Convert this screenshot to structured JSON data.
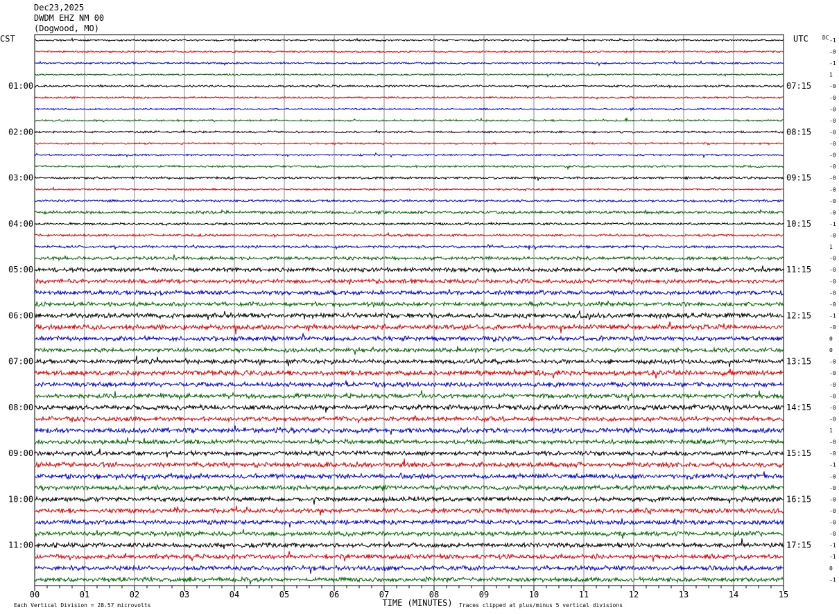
{
  "header": {
    "date": "Dec23,2025",
    "station": "DWDM EHZ NM 00",
    "location": "(Dogwood, MO)"
  },
  "footer": {
    "scale_note": "Each Vertical Division =   28.57 microvolts",
    "clip_note": "Traces clipped at plus/minus 5 vertical divisions"
  },
  "chart_data": {
    "type": "line",
    "title": "",
    "xlabel": "TIME (MINUTES)",
    "x_ticks": [
      "00",
      "01",
      "02",
      "03",
      "04",
      "05",
      "06",
      "07",
      "08",
      "09",
      "10",
      "11",
      "12",
      "13",
      "14",
      "15"
    ],
    "xlim": [
      0,
      15
    ],
    "left_axis_label": "CST",
    "right_axis_label": "UTC",
    "dc_label": "DC",
    "left_hour_labels": [
      "01:00",
      "02:00",
      "03:00",
      "04:00",
      "05:00",
      "06:00",
      "07:00",
      "08:00",
      "09:00",
      "10:00",
      "11:00"
    ],
    "right_hour_labels": [
      "07:15",
      "08:15",
      "09:15",
      "10:15",
      "11:15",
      "12:15",
      "13:15",
      "14:15",
      "15:15",
      "16:15",
      "17:15"
    ],
    "trace_count": 48,
    "trace_colors": [
      "#000000",
      "#e00000",
      "#0000d0",
      "#006400"
    ],
    "dc_offsets": [
      "-1",
      "-0",
      "-1",
      "1",
      "-0",
      "-0",
      "-0",
      "-0",
      "-0",
      "-0",
      "-0",
      "-0",
      "-0",
      "-0",
      "-0",
      "-0",
      "-1",
      "-0",
      "1",
      "-0",
      "-0",
      "-0",
      "-0",
      "-0",
      "-1",
      "-0",
      "0",
      "0",
      "-0",
      "-0",
      "-0",
      "-0",
      "-0",
      "-0",
      "1",
      "-0",
      "-0",
      "-1",
      "-0",
      "-0",
      "-0",
      "-0",
      "-0",
      "-0",
      "-1",
      "-1",
      "0",
      "-1"
    ],
    "activity": [
      1.1,
      1.0,
      1.0,
      0.9,
      1.1,
      1.0,
      0.9,
      1.0,
      1.1,
      1.0,
      1.0,
      1.1,
      1.3,
      1.0,
      1.3,
      1.6,
      1.3,
      1.3,
      1.4,
      1.9,
      2.4,
      2.4,
      2.4,
      2.4,
      2.8,
      2.8,
      2.6,
      2.4,
      2.6,
      2.8,
      2.6,
      2.6,
      2.8,
      2.6,
      2.8,
      2.6,
      2.6,
      2.8,
      2.8,
      2.6,
      2.6,
      2.6,
      2.6,
      2.6,
      2.6,
      2.6,
      2.6,
      2.6
    ],
    "grid": true
  }
}
